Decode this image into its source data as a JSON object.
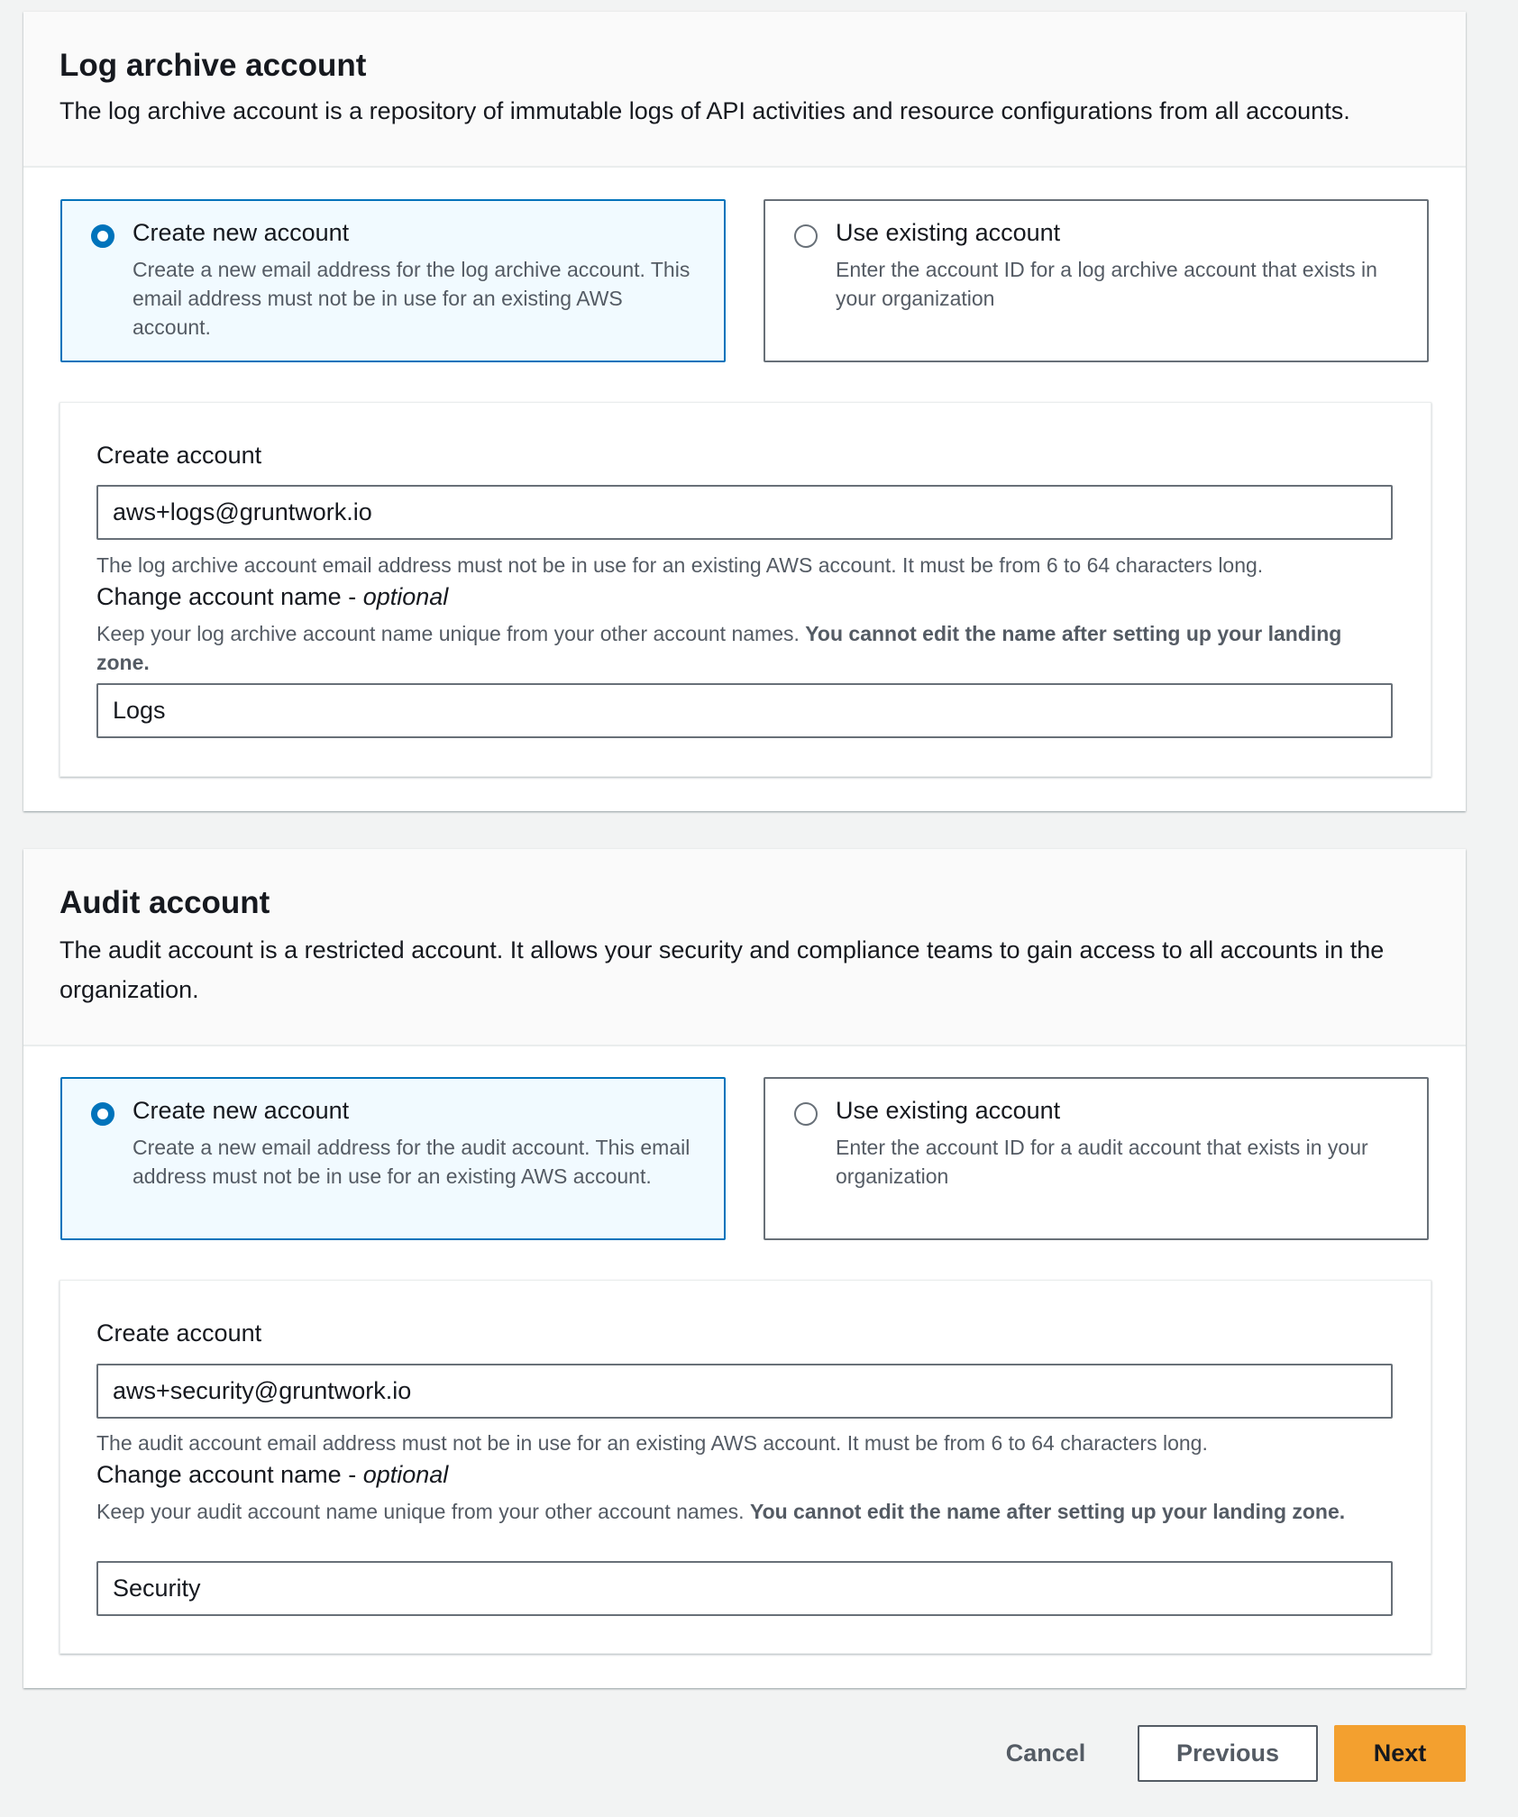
{
  "log_archive": {
    "title": "Log archive account",
    "description": "The log archive account is a repository of immutable logs of API activities and resource configurations from all accounts.",
    "options": [
      {
        "label": "Create new account",
        "description": "Create a new email address for the log archive account. This email address must not be in use for an existing AWS account.",
        "selected": true
      },
      {
        "label": "Use existing account",
        "description": "Enter the account ID for a log archive account that exists in your organization",
        "selected": false
      }
    ],
    "create_account_label": "Create account",
    "email_value": "aws+logs@gruntwork.io",
    "email_help": "The log archive account email address must not be in use for an existing AWS account. It must be from 6 to 64 characters long.",
    "name_label": "Change account name - ",
    "name_optional": "optional",
    "name_help": "Keep your log archive account name unique from your other account names. ",
    "name_help_bold": "You cannot edit the name after setting up your landing zone.",
    "name_value": "Logs"
  },
  "audit": {
    "title": "Audit account",
    "description": "The audit account is a restricted account. It allows your security and compliance teams to gain access to all accounts in the organization.",
    "options": [
      {
        "label": "Create new account",
        "description": "Create a new email address for the audit account. This email address must not be in use for an existing AWS account.",
        "selected": true
      },
      {
        "label": "Use existing account",
        "description": "Enter the account ID for a audit account that exists in your organization",
        "selected": false
      }
    ],
    "create_account_label": "Create account",
    "email_value": "aws+security@gruntwork.io",
    "email_help": "The audit account email address must not be in use for an existing AWS account. It must be from 6 to 64 characters long.",
    "name_label": "Change account name - ",
    "name_optional": "optional",
    "name_help": "Keep your audit account name unique from your other account names. ",
    "name_help_bold": "You cannot edit the name after setting up your landing zone.",
    "name_value": "Security"
  },
  "footer": {
    "cancel": "Cancel",
    "previous": "Previous",
    "next": "Next"
  },
  "colors": {
    "accent": "#0073bb",
    "primary_button": "#f3a02f",
    "selected_tile_bg": "#f1faff"
  }
}
